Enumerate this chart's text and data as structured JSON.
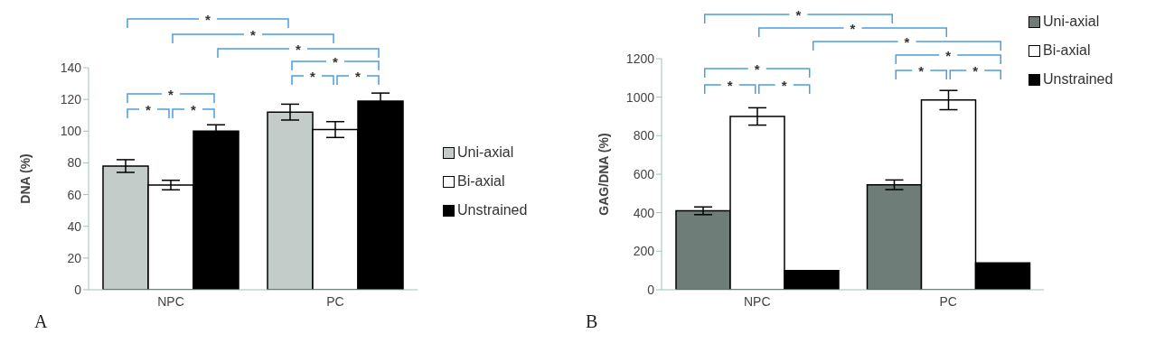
{
  "chart_data": [
    {
      "type": "bar",
      "ylabel": "DNA (%)",
      "categories": [
        "NPC",
        "PC"
      ],
      "ylim": [
        0,
        140
      ],
      "yticks": [
        0,
        20,
        40,
        60,
        80,
        100,
        120,
        140
      ],
      "legend": "right",
      "series": [
        {
          "name": "Uni-axial",
          "color": "#c3ccc8",
          "values": [
            78,
            112
          ],
          "errors": [
            4,
            5
          ]
        },
        {
          "name": "Bi-axial",
          "color": "#ffffff",
          "values": [
            66,
            101
          ],
          "errors": [
            3,
            5
          ]
        },
        {
          "name": "Unstrained",
          "color": "#000000",
          "values": [
            100,
            119
          ],
          "errors": [
            4,
            5
          ]
        }
      ],
      "annotations": [
        "A",
        "*",
        "*",
        "*",
        "*",
        "*",
        "*",
        "*",
        "*",
        "*"
      ]
    },
    {
      "type": "bar",
      "ylabel": "GAG/DNA  (%)",
      "categories": [
        "NPC",
        "PC"
      ],
      "ylim": [
        0,
        1200
      ],
      "yticks": [
        0,
        200,
        400,
        600,
        800,
        1000,
        1200
      ],
      "legend": "top right",
      "series": [
        {
          "name": "Uni-axial",
          "color": "#6f7d78",
          "values": [
            410,
            545
          ],
          "errors": [
            20,
            25
          ]
        },
        {
          "name": "Bi-axial",
          "color": "#ffffff",
          "values": [
            900,
            985
          ],
          "errors": [
            45,
            50
          ]
        },
        {
          "name": "Unstrained",
          "color": "#000000",
          "values": [
            100,
            140
          ]
        }
      ],
      "annotations": [
        "B",
        "*",
        "*",
        "*",
        "*",
        "*",
        "*",
        "*",
        "*",
        "*"
      ]
    }
  ]
}
